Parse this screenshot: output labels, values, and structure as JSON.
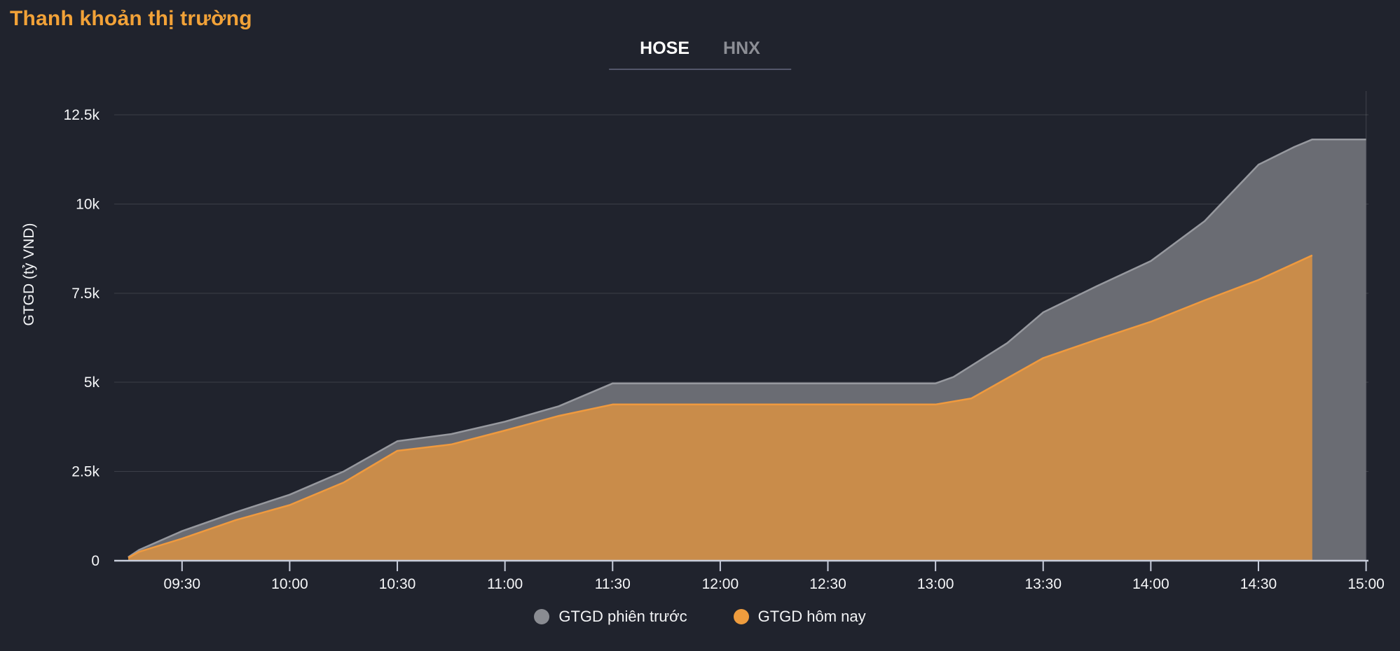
{
  "title": "Thanh khoản thị trường",
  "tabs": [
    {
      "label": "HOSE",
      "active": true
    },
    {
      "label": "HNX",
      "active": false
    }
  ],
  "legend": [
    {
      "label": "GTGD phiên trước",
      "dot_color": "#8A8C92"
    },
    {
      "label": "GTGD hôm nay",
      "dot_color": "#EE9C3E"
    }
  ],
  "colors": {
    "background": "#20232D",
    "title": "#F2A238",
    "grid": "rgba(255,255,255,0.13)",
    "axis_line": "#C8CDDB",
    "axis_text": "#F5F6F8",
    "prev_fill": "#6A6C73",
    "prev_stroke": "#97999F",
    "today_fill": "#C98C4A",
    "today_stroke": "#F09A3E"
  },
  "chart_data": {
    "type": "area",
    "title": "Thanh khoản thị trường",
    "xlabel": "",
    "ylabel": "GTGD (tỷ VND)",
    "x_unit": "time",
    "x_range": [
      "09:15",
      "15:00"
    ],
    "ylim": [
      0,
      12500
    ],
    "grid": "horizontal",
    "legend_position": "bottom",
    "yticks": [
      {
        "value": 0,
        "label": "0"
      },
      {
        "value": 2500,
        "label": "2.5k"
      },
      {
        "value": 5000,
        "label": "5k"
      },
      {
        "value": 7500,
        "label": "7.5k"
      },
      {
        "value": 10000,
        "label": "10k"
      },
      {
        "value": 12500,
        "label": "12.5k"
      }
    ],
    "xticks": [
      "09:30",
      "10:00",
      "10:30",
      "11:00",
      "11:30",
      "12:00",
      "12:30",
      "13:00",
      "13:30",
      "14:00",
      "14:30",
      "15:00"
    ],
    "series": [
      {
        "name": "GTGD phiên trước",
        "points": [
          [
            "09:15",
            100
          ],
          [
            "09:18",
            300
          ],
          [
            "09:30",
            830
          ],
          [
            "09:45",
            1360
          ],
          [
            "10:00",
            1850
          ],
          [
            "10:15",
            2500
          ],
          [
            "10:30",
            3350
          ],
          [
            "10:45",
            3550
          ],
          [
            "11:00",
            3900
          ],
          [
            "11:15",
            4330
          ],
          [
            "11:30",
            4970
          ],
          [
            "13:00",
            4970
          ],
          [
            "13:05",
            5150
          ],
          [
            "13:20",
            6100
          ],
          [
            "13:30",
            6960
          ],
          [
            "13:45",
            7700
          ],
          [
            "14:00",
            8400
          ],
          [
            "14:15",
            9520
          ],
          [
            "14:30",
            11100
          ],
          [
            "14:40",
            11600
          ],
          [
            "14:45",
            11810
          ],
          [
            "15:00",
            11810
          ]
        ]
      },
      {
        "name": "GTGD hôm nay",
        "points": [
          [
            "09:15",
            80
          ],
          [
            "09:18",
            250
          ],
          [
            "09:30",
            620
          ],
          [
            "09:45",
            1140
          ],
          [
            "10:00",
            1560
          ],
          [
            "10:15",
            2190
          ],
          [
            "10:30",
            3080
          ],
          [
            "10:45",
            3260
          ],
          [
            "11:00",
            3650
          ],
          [
            "11:15",
            4060
          ],
          [
            "11:30",
            4380
          ],
          [
            "13:00",
            4380
          ],
          [
            "13:10",
            4550
          ],
          [
            "13:30",
            5680
          ],
          [
            "13:45",
            6200
          ],
          [
            "14:00",
            6700
          ],
          [
            "14:15",
            7300
          ],
          [
            "14:30",
            7870
          ],
          [
            "14:45",
            8560
          ]
        ]
      }
    ]
  }
}
